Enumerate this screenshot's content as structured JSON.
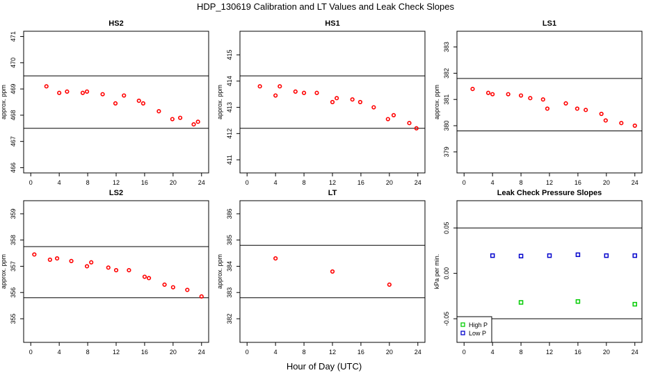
{
  "figure": {
    "title": "HDP_130619  Calibration and LT Values and Leak Check Slopes",
    "xlabel": "Hour of Day (UTC)"
  },
  "colors": {
    "point": "#ff0000",
    "high_p": "#00cc00",
    "low_p": "#0000cc",
    "line": "#000000"
  },
  "chart_data": [
    {
      "type": "scatter",
      "title": "HS2",
      "ylabel": "approx. ppm",
      "xlim": [
        -1,
        25
      ],
      "ylim": [
        465.8,
        471.2
      ],
      "xticks": [
        0,
        4,
        8,
        12,
        16,
        20,
        24
      ],
      "yticks": [
        466,
        467,
        468,
        469,
        470,
        471
      ],
      "hlines": [
        469.5,
        467.5
      ],
      "x": [
        2.2,
        4.0,
        5.1,
        7.3,
        7.9,
        10.1,
        11.9,
        13.1,
        15.2,
        15.8,
        18.0,
        19.9,
        21.0,
        22.9,
        23.5
      ],
      "y": [
        469.1,
        468.85,
        468.9,
        468.85,
        468.9,
        468.8,
        468.45,
        468.75,
        468.55,
        468.45,
        468.15,
        467.85,
        467.9,
        467.65,
        467.75
      ]
    },
    {
      "type": "scatter",
      "title": "HS1",
      "ylabel": "approx. ppm",
      "xlim": [
        -1,
        25
      ],
      "ylim": [
        410.5,
        415.9
      ],
      "xticks": [
        0,
        4,
        8,
        12,
        16,
        20,
        24
      ],
      "yticks": [
        411,
        412,
        413,
        414,
        415
      ],
      "hlines": [
        414.2,
        412.2
      ],
      "x": [
        1.8,
        4.0,
        4.6,
        6.8,
        8.0,
        9.8,
        12.0,
        12.6,
        14.8,
        15.9,
        17.8,
        19.8,
        20.6,
        22.8,
        23.8
      ],
      "y": [
        413.8,
        413.45,
        413.8,
        413.6,
        413.55,
        413.55,
        413.2,
        413.35,
        413.3,
        413.2,
        413.0,
        412.55,
        412.7,
        412.4,
        412.2
      ]
    },
    {
      "type": "scatter",
      "title": "LS1",
      "ylabel": "approx. ppm",
      "xlim": [
        -1,
        25
      ],
      "ylim": [
        378.2,
        383.6
      ],
      "xticks": [
        0,
        4,
        8,
        12,
        16,
        20,
        24
      ],
      "yticks": [
        379,
        380,
        381,
        382,
        383
      ],
      "hlines": [
        381.8,
        379.8
      ],
      "x": [
        1.2,
        3.4,
        4.0,
        6.2,
        8.0,
        9.3,
        11.1,
        11.7,
        14.3,
        15.9,
        17.1,
        19.3,
        19.9,
        22.1,
        24.0
      ],
      "y": [
        381.4,
        381.25,
        381.2,
        381.2,
        381.15,
        381.05,
        381.0,
        380.65,
        380.85,
        380.65,
        380.6,
        380.45,
        380.2,
        380.1,
        380.0
      ]
    },
    {
      "type": "scatter",
      "title": "LS2",
      "ylabel": "approx. ppm",
      "xlim": [
        -1,
        25
      ],
      "ylim": [
        354.1,
        359.5
      ],
      "xticks": [
        0,
        4,
        8,
        12,
        16,
        20,
        24
      ],
      "yticks": [
        355,
        356,
        357,
        358,
        359
      ],
      "hlines": [
        357.75,
        355.8
      ],
      "x": [
        0.5,
        2.7,
        3.7,
        5.7,
        7.9,
        8.5,
        10.9,
        12.0,
        13.8,
        16.0,
        16.6,
        18.8,
        20.0,
        22.0,
        24.0
      ],
      "y": [
        357.45,
        357.25,
        357.3,
        357.2,
        357.0,
        357.15,
        356.95,
        356.85,
        356.85,
        356.6,
        356.55,
        356.3,
        356.2,
        356.1,
        355.85
      ]
    },
    {
      "type": "scatter",
      "title": "LT",
      "ylabel": "approx. ppm",
      "xlim": [
        -1,
        25
      ],
      "ylim": [
        381.1,
        386.5
      ],
      "xticks": [
        0,
        4,
        8,
        12,
        16,
        20,
        24
      ],
      "yticks": [
        382,
        383,
        384,
        385,
        386
      ],
      "hlines": [
        384.8,
        382.8
      ],
      "x": [
        4.0,
        12.0,
        20.0
      ],
      "y": [
        384.3,
        383.8,
        383.3
      ]
    },
    {
      "type": "scatter",
      "title": "Leak Check Pressure Slopes",
      "ylabel": "kPa per min.",
      "xlim": [
        -1,
        25
      ],
      "ylim": [
        -0.076,
        0.08
      ],
      "xticks": [
        0,
        4,
        8,
        12,
        16,
        20,
        24
      ],
      "yticks": [
        -0.05,
        0.0,
        0.05
      ],
      "hlines": [
        0.05,
        -0.05
      ],
      "legend": {
        "position": "bottom-left",
        "entries": [
          "High P",
          "Low P"
        ]
      },
      "series": [
        {
          "name": "High P",
          "x": [
            8,
            16,
            24
          ],
          "y": [
            -0.032,
            -0.031,
            -0.034
          ]
        },
        {
          "name": "Low P",
          "x": [
            4,
            8,
            12,
            16,
            20,
            24
          ],
          "y": [
            0.0195,
            0.019,
            0.0195,
            0.0205,
            0.0195,
            0.0195
          ]
        }
      ]
    }
  ]
}
